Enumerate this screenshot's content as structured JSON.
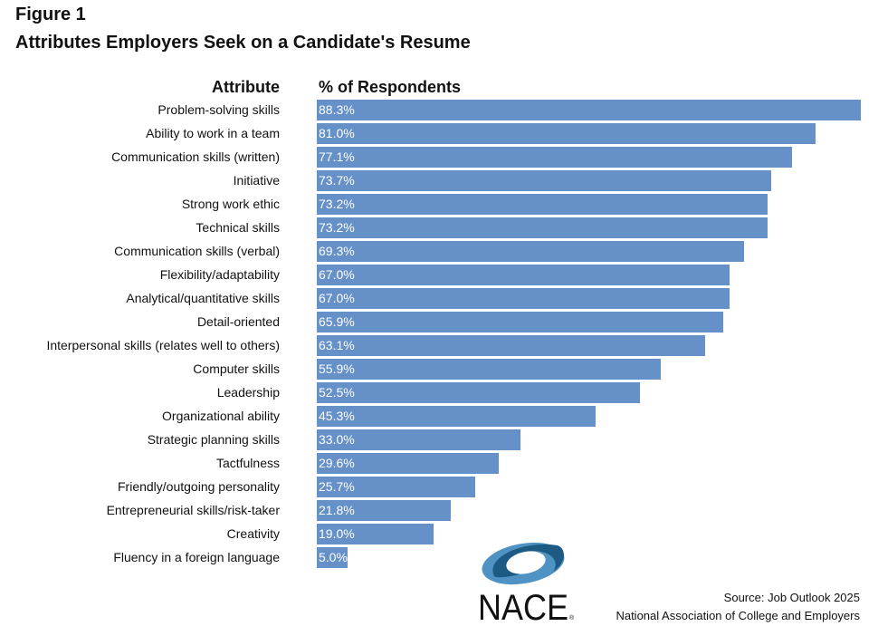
{
  "figure_label": "Figure 1",
  "chart_data": {
    "type": "bar",
    "orientation": "horizontal",
    "title": "Attributes Employers Seek on a Candidate's Resume",
    "category_header": "Attribute",
    "value_header": "% of Respondents",
    "categories": [
      "Problem-solving skills",
      "Ability to work in a team",
      "Communication skills (written)",
      "Initiative",
      "Strong work ethic",
      "Technical skills",
      "Communication skills (verbal)",
      "Flexibility/adaptability",
      "Analytical/quantitative skills",
      "Detail-oriented",
      "Interpersonal skills (relates well to others)",
      "Computer skills",
      "Leadership",
      "Organizational ability",
      "Strategic planning skills",
      "Tactfulness",
      "Friendly/outgoing personality",
      "Entrepreneurial skills/risk-taker",
      "Creativity",
      "Fluency in a foreign language"
    ],
    "values": [
      88.3,
      81.0,
      77.1,
      73.7,
      73.2,
      73.2,
      69.3,
      67.0,
      67.0,
      65.9,
      63.1,
      55.9,
      52.5,
      45.3,
      33.0,
      29.6,
      25.7,
      21.8,
      19.0,
      5.0
    ],
    "data_labels": [
      "88.3%",
      "81.0%",
      "77.1%",
      "73.7%",
      "73.2%",
      "73.2%",
      "69.3%",
      "67.0%",
      "67.0%",
      "65.9%",
      "63.1%",
      "55.9%",
      "52.5%",
      "45.3%",
      "33.0%",
      "29.6%",
      "25.7%",
      "21.8%",
      "19.0%",
      "5.0%"
    ],
    "bar_color": "#6690c8",
    "grid": false
  },
  "source": {
    "line1": "Source:  Job Outlook 2025",
    "line2": "National Association of College and Employers"
  },
  "logo": {
    "text": "NACE",
    "colors": [
      "#1d5b84",
      "#4f93c4"
    ]
  }
}
